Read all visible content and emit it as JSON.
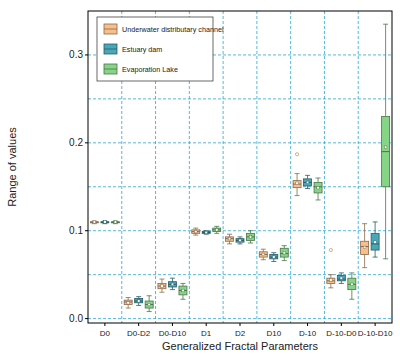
{
  "chart_data": {
    "type": "box",
    "x_label": "Generalized Fractal Parameters",
    "y_label": "Range of values",
    "categories": [
      "D0",
      "D0-D2",
      "D0-D10",
      "D1",
      "D2",
      "D10",
      "D-10",
      "D-10-D0",
      "D-10-D10"
    ],
    "ylim": [
      -0.005,
      0.35
    ],
    "yticks": [
      {
        "value": 0,
        "label": "0.0"
      },
      0.1,
      0.2,
      0.3
    ],
    "yticks_minor": [
      0.05,
      0.15,
      0.25
    ],
    "grid": true,
    "legend": "upper left",
    "series": [
      {
        "name": "Underwater distributary channel",
        "color": "#f7c08a",
        "min": [
          0.108,
          0.012,
          0.03,
          0.095,
          0.085,
          0.067,
          0.14,
          0.035,
          0.058
        ],
        "q1": [
          0.109,
          0.016,
          0.034,
          0.097,
          0.088,
          0.07,
          0.149,
          0.04,
          0.073
        ],
        "median": [
          0.11,
          0.019,
          0.037,
          0.099,
          0.091,
          0.073,
          0.153,
          0.043,
          0.082
        ],
        "q3": [
          0.11,
          0.021,
          0.04,
          0.101,
          0.093,
          0.076,
          0.157,
          0.046,
          0.088
        ],
        "max": [
          0.111,
          0.024,
          0.045,
          0.103,
          0.096,
          0.079,
          0.165,
          0.05,
          0.108
        ],
        "mean": [
          0.11,
          0.018,
          0.037,
          0.099,
          0.091,
          0.073,
          0.154,
          0.044,
          0.081
        ],
        "outliers": [
          [],
          [],
          [],
          [],
          [],
          [],
          [
            0.187
          ],
          [
            0.078
          ],
          []
        ]
      },
      {
        "name": "Estuary dam",
        "color": "#49a7b8",
        "min": [
          0.108,
          0.015,
          0.033,
          0.096,
          0.085,
          0.065,
          0.148,
          0.04,
          0.07
        ],
        "q1": [
          0.109,
          0.018,
          0.036,
          0.097,
          0.087,
          0.068,
          0.151,
          0.043,
          0.078
        ],
        "median": [
          0.11,
          0.02,
          0.039,
          0.098,
          0.089,
          0.07,
          0.155,
          0.045,
          0.085
        ],
        "q3": [
          0.11,
          0.023,
          0.042,
          0.099,
          0.091,
          0.073,
          0.159,
          0.049,
          0.097
        ],
        "max": [
          0.111,
          0.025,
          0.046,
          0.1,
          0.093,
          0.075,
          0.163,
          0.052,
          0.11
        ],
        "mean": [
          0.11,
          0.02,
          0.039,
          0.098,
          0.089,
          0.07,
          0.155,
          0.046,
          0.087
        ],
        "outliers": [
          [],
          [],
          [],
          [],
          [],
          [],
          [],
          [],
          []
        ]
      },
      {
        "name": "Evaporation Lake",
        "color": "#86d486",
        "min": [
          0.108,
          0.008,
          0.022,
          0.097,
          0.086,
          0.066,
          0.135,
          0.022,
          0.068
        ],
        "q1": [
          0.109,
          0.012,
          0.027,
          0.099,
          0.089,
          0.07,
          0.143,
          0.033,
          0.15
        ],
        "median": [
          0.11,
          0.016,
          0.032,
          0.101,
          0.093,
          0.074,
          0.15,
          0.039,
          0.19
        ],
        "q3": [
          0.11,
          0.02,
          0.037,
          0.103,
          0.097,
          0.08,
          0.155,
          0.046,
          0.23
        ],
        "max": [
          0.111,
          0.026,
          0.04,
          0.105,
          0.1,
          0.083,
          0.16,
          0.052,
          0.335
        ],
        "mean": [
          0.11,
          0.016,
          0.032,
          0.101,
          0.093,
          0.075,
          0.149,
          0.039,
          0.195
        ],
        "outliers": [
          [],
          [],
          [],
          [],
          [],
          [],
          [],
          [],
          []
        ]
      }
    ]
  }
}
